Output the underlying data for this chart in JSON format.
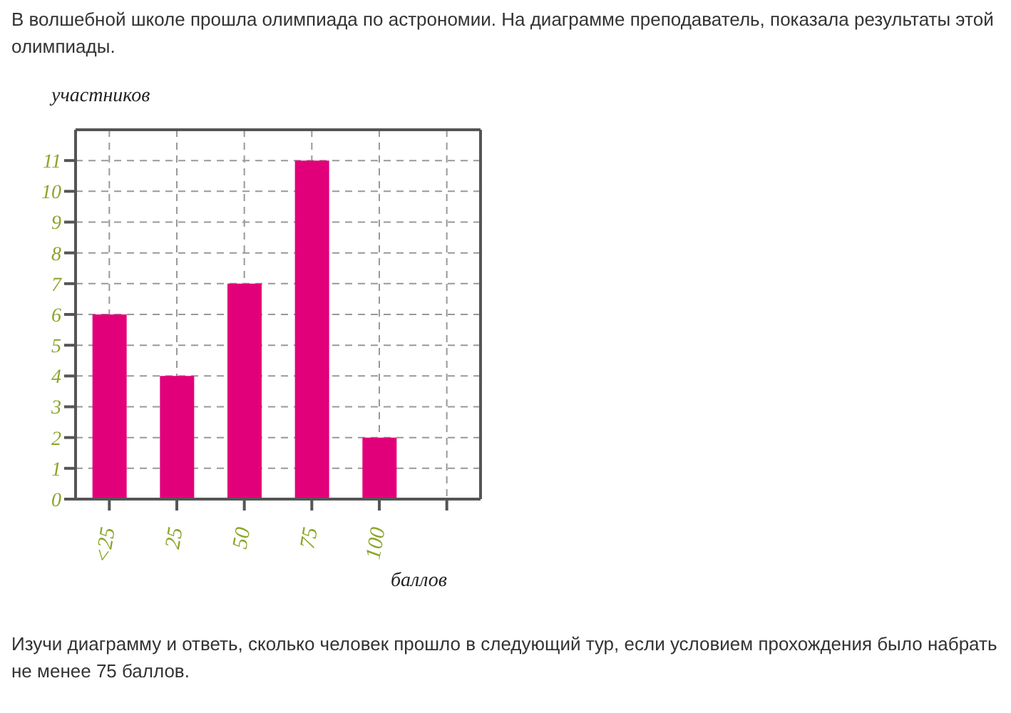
{
  "chart_data": {
    "type": "bar",
    "title": "В волшебной школе прошла олимпиада по астрономии. На диаграмме преподаватель, показала результаты этой олимпиады.",
    "xlabel": "баллов",
    "ylabel": "участников",
    "categories": [
      "<25",
      "25",
      "50",
      "75",
      "100",
      null
    ],
    "values": [
      6,
      4,
      7,
      11,
      2,
      null
    ],
    "color": "#e2007a",
    "ylim": [
      0,
      12
    ],
    "yticks": [
      0,
      1,
      2,
      3,
      4,
      5,
      6,
      7,
      8,
      9,
      10,
      11
    ],
    "grid": true,
    "annotations": [
      "Изучи диаграмму и ответь, сколько человек прошло в следующий тур, если условием прохождения было набрать не менее 75 баллов."
    ]
  }
}
